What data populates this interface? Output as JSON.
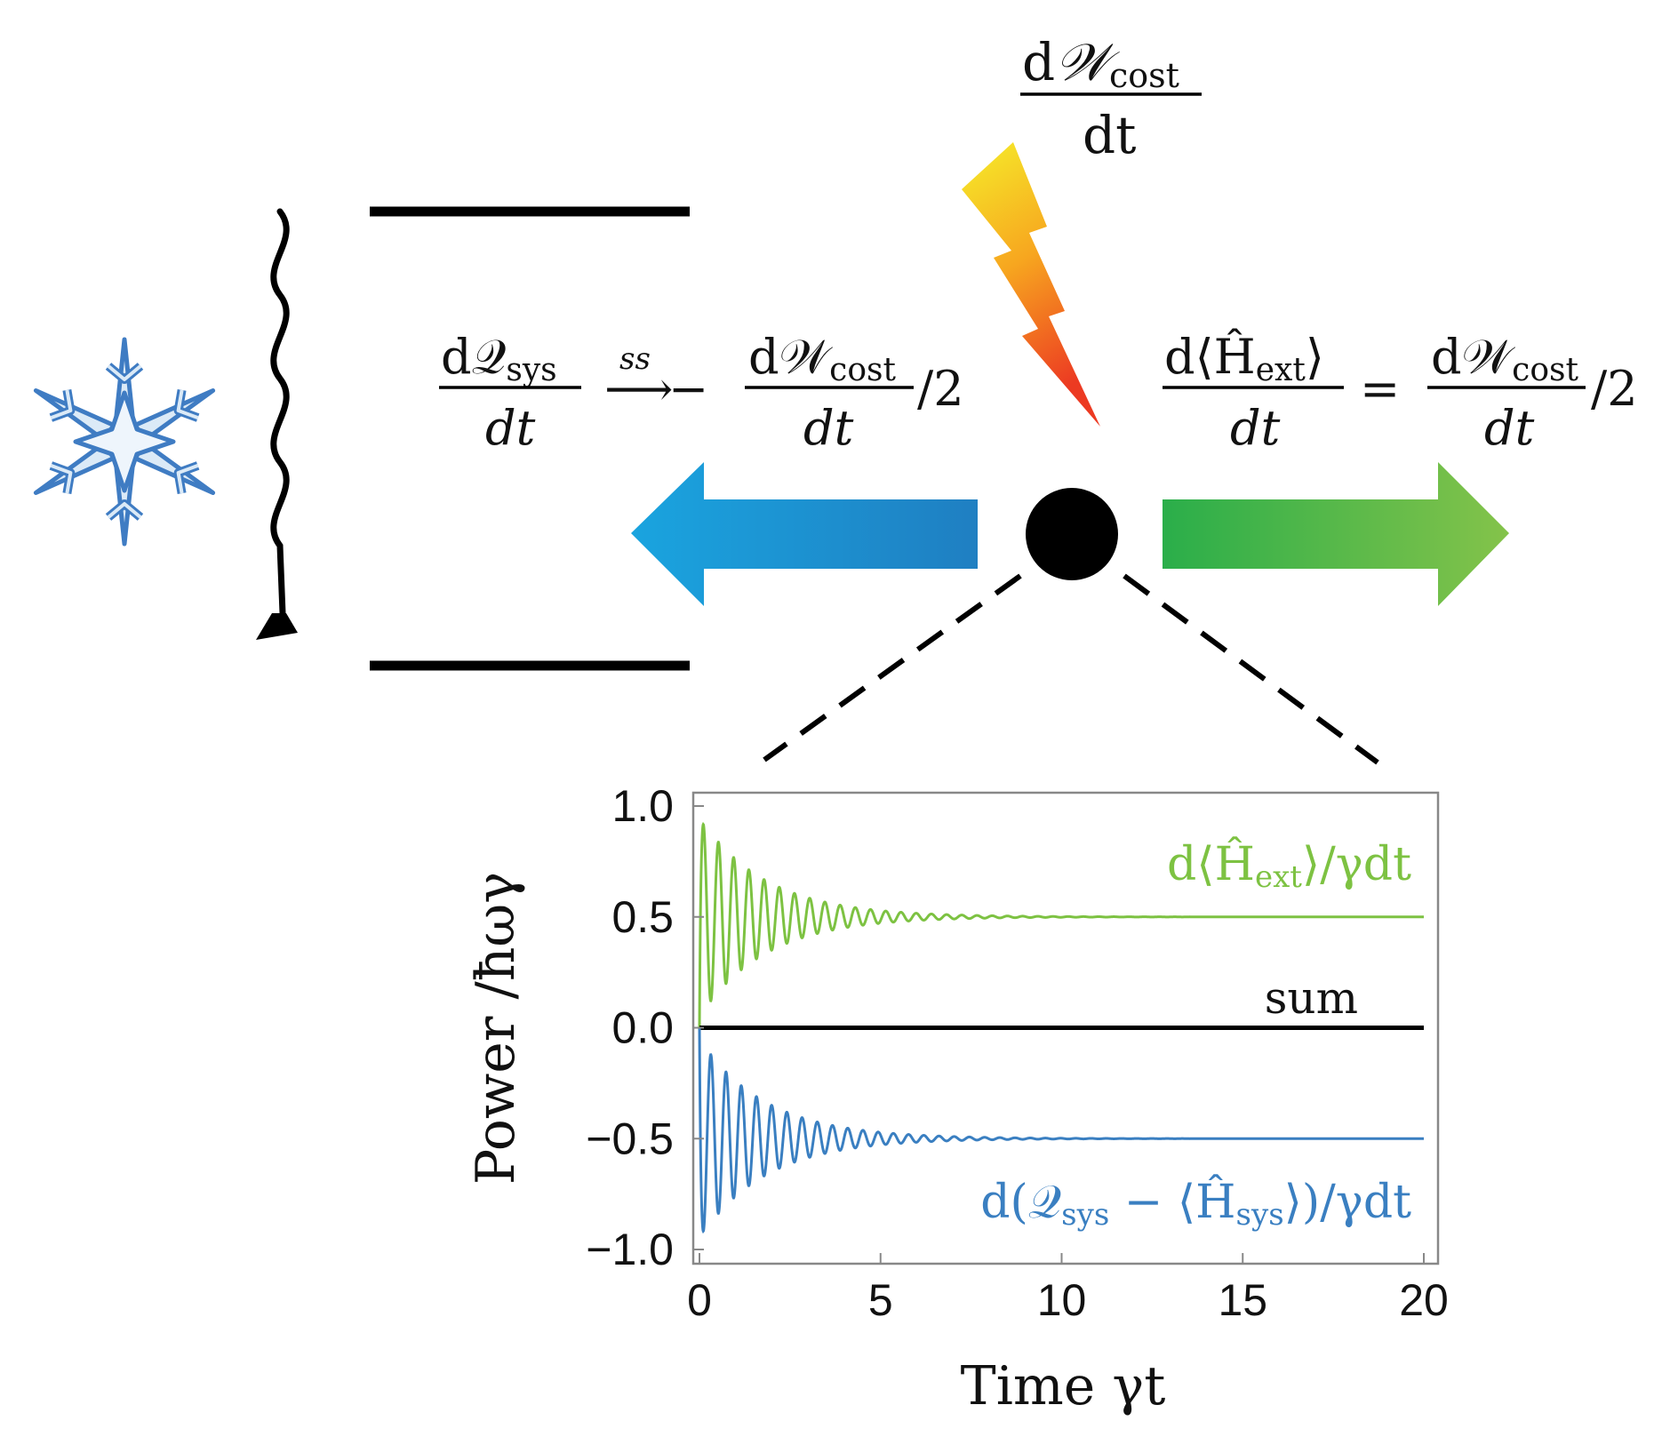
{
  "diagram": {
    "work_cost_label": {
      "num_prefix": "d",
      "num_symbol": "𝒲",
      "num_sub": "cost",
      "den": "dt"
    },
    "left_relation": {
      "frac1_num": "d𝒬",
      "frac1_sub": "sys",
      "frac1_den": "dt",
      "arrow_over": "ss",
      "arrow": "⟶",
      "minus": "−",
      "frac2_num": "d𝒲",
      "frac2_sub": "cost",
      "frac2_den": "dt",
      "suffix": "/2"
    },
    "right_relation": {
      "frac1_num": "d⟨Ĥ",
      "frac1_sub": "ext",
      "frac1_close": "⟩",
      "frac1_den": "dt",
      "equals": "=",
      "frac2_num": "d𝒲",
      "frac2_sub": "cost",
      "frac2_den": "dt",
      "suffix": "/2"
    },
    "icons": [
      "snowflake-icon",
      "lightning-bolt-icon",
      "wavy-arrow-icon"
    ],
    "colors": {
      "cold_arrow": "#1f9ad6",
      "work_arrow": "#4cb848",
      "bolt_top": "#f6ea2a",
      "bolt_bottom": "#ee3f23",
      "snowflake": "#4a86c8"
    }
  },
  "chart_data": {
    "type": "line",
    "xlabel": "Time γt",
    "ylabel": "Power /ħωγ",
    "xlim": [
      0,
      20
    ],
    "ylim": [
      -1.0,
      1.0
    ],
    "xticks": [
      "0",
      "5",
      "10",
      "15",
      "20"
    ],
    "yticks": [
      "1.0",
      "0.5",
      "0.0",
      "−0.5",
      "−1.0"
    ],
    "grid": false,
    "series": [
      {
        "name": "d⟨Ĥext⟩/γdt",
        "label_text": "d⟨Ĥ",
        "label_sub": "ext",
        "label_tail": "⟩/γdt",
        "color": "#7dc242",
        "baseline": 0.5,
        "amplitude": 0.45,
        "decay_rate": 0.55,
        "period": 0.42,
        "steady_state": 0.5
      },
      {
        "name": "sum",
        "label_text": "sum",
        "color": "#000000",
        "baseline": 0.0,
        "amplitude": 0.0,
        "steady_state": 0.0
      },
      {
        "name": "d(𝒬sys − ⟨Ĥsys⟩)/γdt",
        "label_text": "d(𝒬",
        "label_sub": "sys",
        "label_mid": " − ⟨Ĥ",
        "label_sub2": "sys",
        "label_tail": "⟩)/γdt",
        "color": "#3a7fc1",
        "baseline": -0.5,
        "amplitude": 0.45,
        "decay_rate": 0.55,
        "period": 0.42,
        "steady_state": -0.5
      }
    ]
  }
}
